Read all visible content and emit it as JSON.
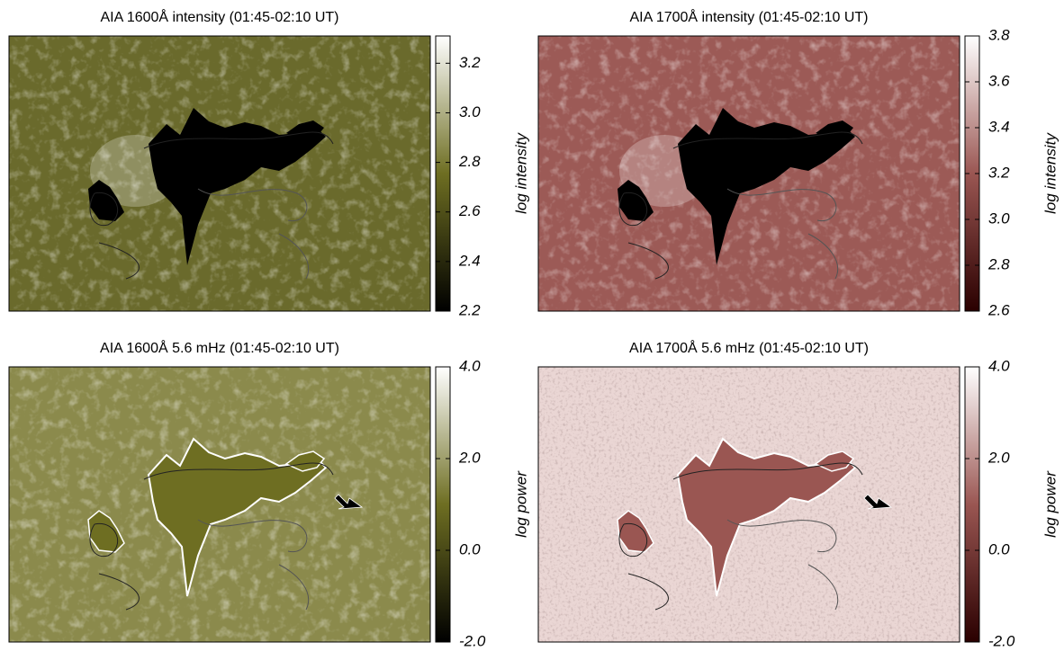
{
  "chart_data": [
    {
      "type": "image",
      "title": "AIA 1600Å intensity (01:45-02:10 UT)",
      "colorbar_label": "log intensity",
      "colormap": [
        "#000000",
        "#6e6e22",
        "#ffffff"
      ],
      "clim": [
        2.2,
        3.31
      ],
      "cticks": [
        2.2,
        2.4,
        2.6,
        2.8,
        {
          "value": 3,
          "label": "3.0"
        },
        3.2
      ]
    },
    {
      "type": "image",
      "title": "AIA 1700Å intensity (01:45-02:10 UT)",
      "colorbar_label": "log intensity",
      "colormap": [
        "#2a0000",
        "#9a5652",
        "#ffffff"
      ],
      "clim": [
        2.6,
        3.8
      ],
      "cticks": [
        2.6,
        2.8,
        {
          "value": 3,
          "label": "3.0"
        },
        3.2,
        3.4,
        3.6,
        3.8
      ]
    },
    {
      "type": "image",
      "title": "AIA 1600Å 5.6 mHz (01:45-02:10 UT)",
      "colorbar_label": "log power",
      "colormap": [
        "#000000",
        "#6e6e22",
        "#ffffff"
      ],
      "clim": [
        -2,
        4
      ],
      "cticks": [
        {
          "value": -2,
          "label": "-2.0"
        },
        {
          "value": 0,
          "label": "0.0"
        },
        {
          "value": 2,
          "label": "2.0"
        },
        {
          "value": 4,
          "label": "4.0"
        }
      ]
    },
    {
      "type": "image",
      "title": "AIA 1700Å 5.6 mHz (01:45-02:10 UT)",
      "colorbar_label": "log power",
      "colormap": [
        "#2a0000",
        "#9a5652",
        "#ffffff"
      ],
      "clim": [
        -2,
        4
      ],
      "cticks": [
        {
          "value": -2,
          "label": "-2.0"
        },
        {
          "value": 0,
          "label": "0.0"
        },
        {
          "value": 2,
          "label": "2.0"
        },
        {
          "value": 4,
          "label": "4.0"
        }
      ]
    }
  ]
}
